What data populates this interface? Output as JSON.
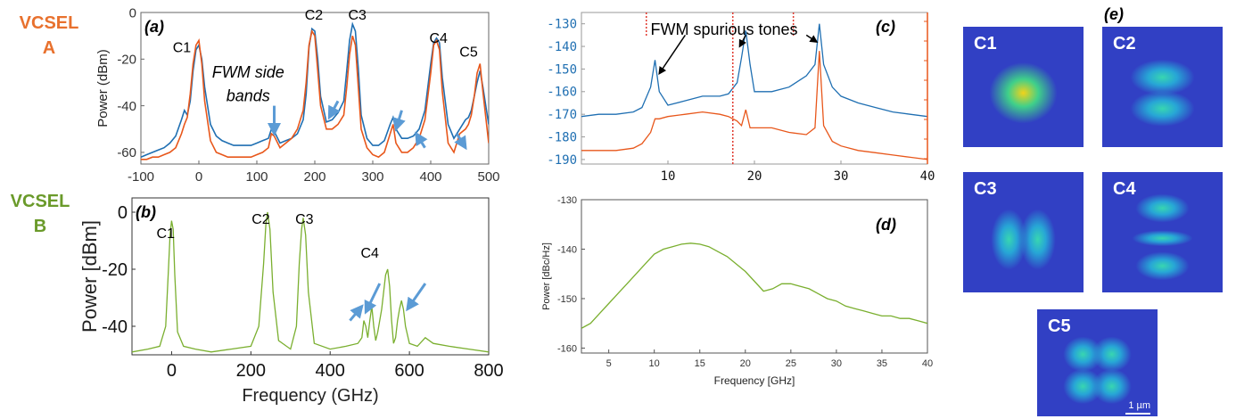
{
  "row_labels": {
    "vcsel_a": {
      "line1": "VCSEL",
      "line2": "A",
      "color": "#e8712e"
    },
    "vcsel_b": {
      "line1": "VCSEL",
      "line2": "B",
      "color": "#6a9a2a"
    }
  },
  "colors": {
    "blue": "#1f6fb2",
    "orange": "#e8571b",
    "green": "#7aaf2f",
    "arrow": "#5b9bd5",
    "red_dashed": "#e03a2f"
  },
  "chart_data": [
    {
      "id": "a",
      "type": "line",
      "panel_label": "(a)",
      "ylabel": "Power (dBm)",
      "xlim": [
        -100,
        500
      ],
      "ylim": [
        -65,
        0
      ],
      "xticks": [
        -100,
        0,
        100,
        200,
        300,
        400,
        500
      ],
      "yticks": [
        0,
        -20,
        -40,
        -60
      ],
      "ytick_labels": [
        "0",
        "-20",
        "-40",
        "-60"
      ],
      "series": [
        {
          "color": "#1f6fb2",
          "x": [
            -100,
            -90,
            -80,
            -70,
            -60,
            -50,
            -40,
            -30,
            -25,
            -20,
            -15,
            -10,
            -5,
            0,
            5,
            10,
            20,
            30,
            40,
            50,
            60,
            70,
            80,
            90,
            100,
            110,
            120,
            125,
            130,
            140,
            150,
            160,
            170,
            180,
            185,
            190,
            195,
            200,
            205,
            210,
            220,
            230,
            240,
            250,
            255,
            260,
            265,
            270,
            275,
            280,
            290,
            300,
            310,
            320,
            330,
            335,
            340,
            350,
            360,
            370,
            380,
            390,
            400,
            405,
            410,
            415,
            420,
            430,
            440,
            450,
            460,
            465,
            470,
            475,
            480,
            485,
            490,
            500
          ],
          "y": [
            -62,
            -61,
            -60,
            -59,
            -58,
            -56,
            -53,
            -46,
            -42,
            -44,
            -38,
            -25,
            -16,
            -14,
            -20,
            -32,
            -48,
            -53,
            -55,
            -56,
            -57,
            -57,
            -57,
            -57,
            -56,
            -55,
            -54,
            -50,
            -51,
            -56,
            -55,
            -54,
            -52,
            -46,
            -35,
            -15,
            -7,
            -8,
            -20,
            -36,
            -47,
            -46,
            -43,
            -38,
            -25,
            -12,
            -5,
            -8,
            -24,
            -44,
            -54,
            -57,
            -57,
            -55,
            -48,
            -45,
            -50,
            -54,
            -54,
            -53,
            -50,
            -42,
            -22,
            -13,
            -11,
            -13,
            -28,
            -48,
            -54,
            -50,
            -46,
            -45,
            -42,
            -36,
            -30,
            -25,
            -32,
            -48
          ]
        },
        {
          "color": "#e8571b",
          "x": [
            -100,
            -90,
            -80,
            -70,
            -60,
            -50,
            -40,
            -30,
            -25,
            -20,
            -15,
            -10,
            -5,
            0,
            5,
            10,
            20,
            30,
            40,
            50,
            60,
            70,
            80,
            90,
            100,
            110,
            120,
            125,
            130,
            140,
            150,
            160,
            170,
            180,
            185,
            190,
            195,
            200,
            205,
            210,
            220,
            230,
            240,
            250,
            255,
            260,
            265,
            270,
            275,
            280,
            290,
            300,
            310,
            320,
            330,
            335,
            340,
            350,
            360,
            370,
            380,
            390,
            400,
            405,
            410,
            415,
            420,
            430,
            440,
            450,
            460,
            465,
            470,
            475,
            480,
            485,
            490,
            500
          ],
          "y": [
            -63,
            -63,
            -62,
            -62,
            -61,
            -60,
            -58,
            -52,
            -48,
            -45,
            -35,
            -22,
            -14,
            -12,
            -22,
            -38,
            -55,
            -60,
            -61,
            -62,
            -62,
            -62,
            -62,
            -62,
            -61,
            -60,
            -58,
            -52,
            -53,
            -58,
            -56,
            -54,
            -50,
            -42,
            -30,
            -14,
            -8,
            -10,
            -25,
            -40,
            -50,
            -50,
            -48,
            -44,
            -32,
            -18,
            -10,
            -14,
            -32,
            -50,
            -58,
            -61,
            -62,
            -60,
            -52,
            -48,
            -56,
            -60,
            -60,
            -58,
            -54,
            -46,
            -26,
            -14,
            -12,
            -16,
            -34,
            -56,
            -60,
            -52,
            -50,
            -48,
            -44,
            -36,
            -26,
            -22,
            -34,
            -56
          ]
        }
      ],
      "annotations": [
        "C1",
        "C2",
        "C3",
        "C4",
        "C5",
        "FWM side",
        "bands"
      ]
    },
    {
      "id": "b",
      "type": "line",
      "panel_label": "(b)",
      "xlabel": "Frequency (GHz)",
      "ylabel": "Power [dBm]",
      "xlim": [
        -100,
        800
      ],
      "ylim": [
        -50,
        5
      ],
      "xticks": [
        0,
        200,
        400,
        600,
        800
      ],
      "yticks": [
        0,
        -20,
        -40
      ],
      "ytick_labels": [
        "0",
        "-20",
        "-40"
      ],
      "series": [
        {
          "color": "#7aaf2f",
          "x": [
            -100,
            -60,
            -30,
            -15,
            -8,
            -4,
            0,
            4,
            8,
            15,
            30,
            60,
            100,
            150,
            200,
            220,
            232,
            238,
            242,
            248,
            256,
            270,
            300,
            315,
            322,
            328,
            332,
            338,
            345,
            360,
            400,
            440,
            470,
            480,
            485,
            490,
            495,
            500,
            505,
            510,
            515,
            520,
            525,
            530,
            535,
            540,
            545,
            550,
            555,
            560,
            565,
            570,
            575,
            580,
            585,
            590,
            600,
            620,
            640,
            660,
            700,
            750,
            800
          ],
          "y": [
            -49,
            -48,
            -47,
            -40,
            -20,
            -8,
            -3,
            -6,
            -22,
            -42,
            -47,
            -48,
            -49,
            -48,
            -47,
            -40,
            -18,
            -4,
            0,
            -6,
            -28,
            -45,
            -48,
            -40,
            -18,
            -6,
            -2,
            -8,
            -28,
            -46,
            -48,
            -47,
            -46,
            -44,
            -38,
            -40,
            -44,
            -38,
            -33,
            -40,
            -45,
            -42,
            -38,
            -34,
            -28,
            -22,
            -20,
            -26,
            -38,
            -46,
            -44,
            -38,
            -34,
            -31,
            -34,
            -40,
            -46,
            -47,
            -44,
            -46,
            -47,
            -48,
            -49
          ]
        }
      ],
      "annotations": [
        "C1",
        "C2",
        "C3",
        "C4"
      ]
    },
    {
      "id": "c",
      "type": "line",
      "panel_label": "(c)",
      "xlim": [
        0,
        40
      ],
      "ylim": [
        -192,
        -125
      ],
      "xticks": [
        10,
        20,
        30,
        40
      ],
      "yticks": [
        -130,
        -140,
        -150,
        -160,
        -170,
        -180,
        -190
      ],
      "ytick_labels": [
        "-130",
        "-140",
        "-150",
        "-160",
        "-170",
        "-180",
        "-190"
      ],
      "series": [
        {
          "color": "#1f6fb2",
          "x": [
            0,
            2,
            4,
            6,
            7,
            8,
            8.5,
            9,
            10,
            12,
            14,
            16,
            17,
            18,
            18.5,
            19,
            19.5,
            20,
            22,
            24,
            26,
            27,
            27.5,
            28,
            29,
            30,
            32,
            34,
            36,
            38,
            40
          ],
          "y": [
            -171,
            -170,
            -170,
            -169,
            -167,
            -158,
            -146,
            -160,
            -166,
            -164,
            -162,
            -162,
            -161,
            -156,
            -145,
            -133,
            -148,
            -160,
            -160,
            -158,
            -153,
            -148,
            -130,
            -148,
            -158,
            -162,
            -165,
            -167,
            -169,
            -170,
            -171
          ]
        },
        {
          "color": "#e8571b",
          "x": [
            0,
            2,
            4,
            6,
            7,
            8,
            8.5,
            9,
            10,
            12,
            14,
            16,
            17,
            18,
            18.5,
            19,
            19.5,
            20,
            22,
            24,
            26,
            27,
            27.5,
            28,
            29,
            30,
            32,
            34,
            36,
            38,
            40
          ],
          "y": [
            -186,
            -186,
            -186,
            -185,
            -183,
            -178,
            -172,
            -172,
            -171,
            -170,
            -169,
            -170,
            -171,
            -173,
            -175,
            -168,
            -176,
            -176,
            -176,
            -178,
            -179,
            -176,
            -142,
            -175,
            -182,
            -184,
            -186,
            -187,
            -188,
            -189,
            -190
          ]
        }
      ],
      "markers": {
        "red_dashed_x": [
          7.5,
          17.5,
          24.5
        ]
      },
      "annotations": [
        "FWM spurious tones"
      ]
    },
    {
      "id": "d",
      "type": "line",
      "panel_label": "(d)",
      "xlabel": "Frequency [GHz]",
      "ylabel": "Power [dBc/Hz]",
      "xlim": [
        2,
        40
      ],
      "ylim": [
        -161,
        -130
      ],
      "xticks": [
        5,
        10,
        15,
        20,
        25,
        30,
        35,
        40
      ],
      "yticks": [
        -130,
        -140,
        -150,
        -160
      ],
      "ytick_labels": [
        "-130",
        "-140",
        "-150",
        "-160"
      ],
      "series": [
        {
          "color": "#7aaf2f",
          "x": [
            2,
            3,
            4,
            5,
            6,
            7,
            8,
            9,
            10,
            11,
            12,
            13,
            14,
            15,
            16,
            17,
            18,
            19,
            20,
            21,
            22,
            23,
            24,
            25,
            26,
            27,
            28,
            29,
            30,
            31,
            32,
            33,
            34,
            35,
            36,
            37,
            38,
            39,
            40
          ],
          "y": [
            -156,
            -155,
            -153,
            -151,
            -149,
            -147,
            -145,
            -143,
            -141,
            -140,
            -139.5,
            -139,
            -138.8,
            -139,
            -139.5,
            -140.5,
            -141.5,
            -143,
            -144.5,
            -146.5,
            -148.5,
            -148,
            -147,
            -147,
            -147.5,
            -148,
            -149,
            -150,
            -150.5,
            -151.5,
            -152,
            -152.5,
            -153,
            -153.5,
            -153.5,
            -154,
            -154,
            -154.5,
            -155
          ]
        }
      ]
    }
  ],
  "panel_e": {
    "panel_label": "(e)",
    "modes": [
      {
        "label": "C1",
        "pattern": "single"
      },
      {
        "label": "C2",
        "pattern": "vertical-pair"
      },
      {
        "label": "C3",
        "pattern": "horizontal-pair"
      },
      {
        "label": "C4",
        "pattern": "vertical-triple"
      },
      {
        "label": "C5",
        "pattern": "quad",
        "scale_label": "1 µm"
      }
    ]
  }
}
